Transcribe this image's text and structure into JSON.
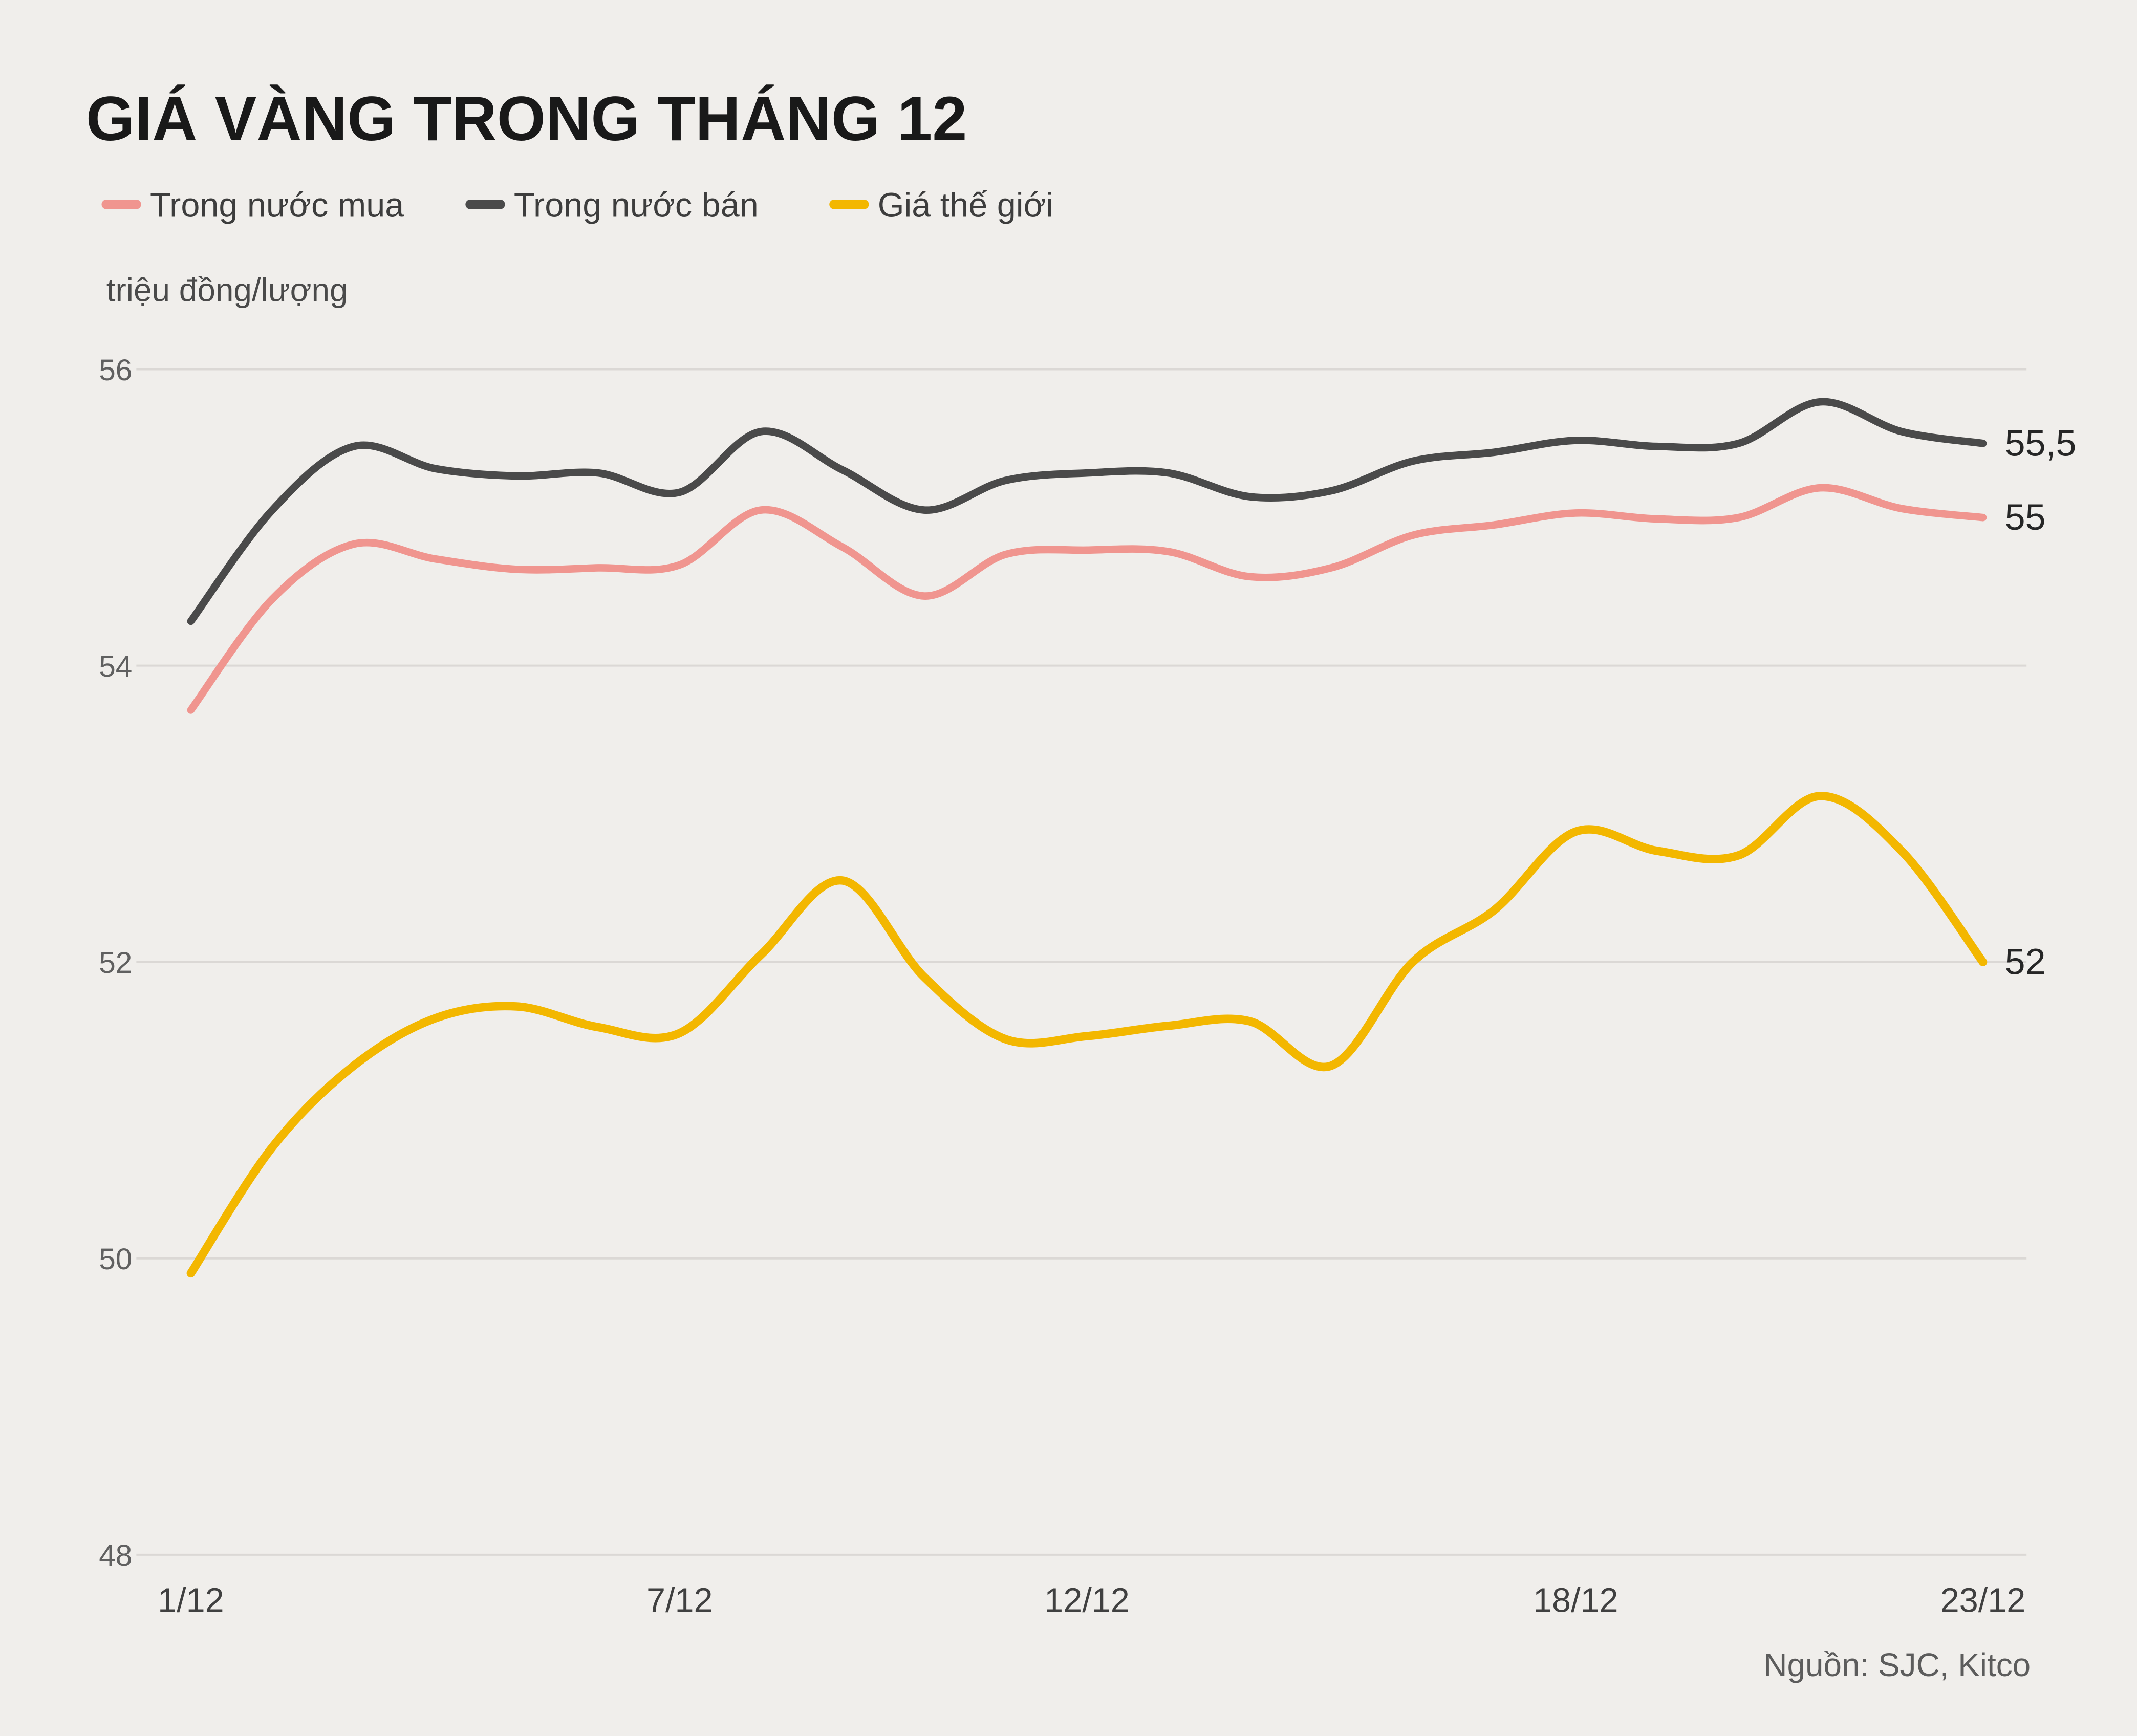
{
  "title": "GIÁ VÀNG TRONG THÁNG 12",
  "unit_label": "triệu đồng/lượng",
  "source": "Nguồn: SJC, Kitco",
  "colors": {
    "background": "#f0eeeb",
    "grid": "#dbd8d5",
    "buy": "#f0958f",
    "sell": "#4a4a4a",
    "world": "#f3b700",
    "title_text": "#191919",
    "axis_text": "#606060"
  },
  "chart_data": {
    "type": "line",
    "title": "GIÁ VÀNG TRONG THÁNG 12",
    "ylabel": "triệu đồng/lượng",
    "ylim": [
      48,
      56
    ],
    "y_ticks": [
      56,
      54,
      52,
      50,
      48
    ],
    "x_range_days": [
      1,
      23
    ],
    "x_label_days": [
      1,
      7,
      12,
      18,
      23
    ],
    "x_tick_labels": [
      "1/12",
      "7/12",
      "12/12",
      "18/12",
      "23/12"
    ],
    "grid": "horizontal",
    "legend_position": "top",
    "days": [
      1,
      2,
      3,
      4,
      5,
      6,
      7,
      8,
      9,
      10,
      11,
      12,
      13,
      14,
      15,
      16,
      17,
      18,
      19,
      20,
      21,
      22,
      23
    ],
    "series": [
      {
        "name": "Trong nước mua",
        "color_key": "buy",
        "end_label": "55",
        "values": [
          53.7,
          54.45,
          54.82,
          54.72,
          54.65,
          54.66,
          54.68,
          55.05,
          54.8,
          54.47,
          54.75,
          54.78,
          54.77,
          54.6,
          54.66,
          54.88,
          54.95,
          55.03,
          54.99,
          55.0,
          55.2,
          55.06,
          55.0
        ]
      },
      {
        "name": "Trong nước bán",
        "color_key": "sell",
        "end_label": "55,5",
        "values": [
          54.3,
          55.05,
          55.48,
          55.33,
          55.28,
          55.3,
          55.17,
          55.58,
          55.32,
          55.05,
          55.25,
          55.3,
          55.3,
          55.14,
          55.18,
          55.38,
          55.44,
          55.52,
          55.48,
          55.5,
          55.78,
          55.58,
          55.5
        ]
      },
      {
        "name": "Giá thế giới",
        "color_key": "world",
        "end_label": "52",
        "values": [
          49.9,
          50.75,
          51.3,
          51.62,
          51.7,
          51.56,
          51.52,
          52.05,
          52.55,
          51.9,
          51.48,
          51.5,
          51.57,
          51.6,
          51.3,
          52.0,
          52.35,
          52.88,
          52.75,
          52.72,
          53.12,
          52.75,
          52.0
        ]
      }
    ]
  }
}
